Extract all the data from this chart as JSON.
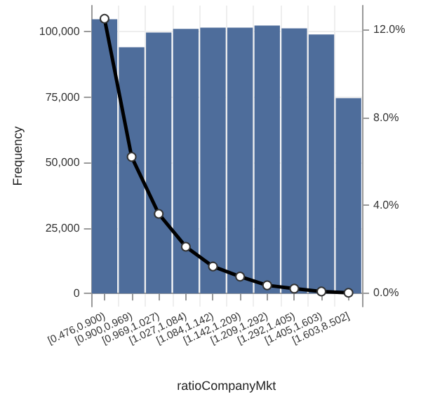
{
  "chart_data": {
    "type": "bar",
    "xlabel": "ratioCompanyMkt",
    "ylabel": "Frequency",
    "categories": [
      "[0.476,0.900)",
      "[0.900,0.969)",
      "[0.969,1.027)",
      "[1.027,1.084)",
      "[1.084,1.142)",
      "[1.142,1.209)",
      "[1.209,1.292)",
      "[1.292,1.405)",
      "[1.405,1.603)",
      "[1.603,8.502]"
    ],
    "series": [
      {
        "color": "#4e6d9b",
        "values": [
          104800,
          94100,
          99700,
          101100,
          101600,
          101600,
          102400,
          101300,
          99000,
          74600
        ]
      },
      {
        "type": "line",
        "axis": "y2",
        "color": "#000000",
        "values": [
          12.5,
          6.2,
          3.6,
          2.1,
          1.2,
          0.74,
          0.34,
          0.19,
          0.06,
          0.0
        ]
      }
    ],
    "ylim": [
      -5000,
      110000
    ],
    "yticks": [
      {
        "value": 0,
        "label": "0"
      },
      {
        "value": 25000,
        "label": "25,000"
      },
      {
        "value": 50000,
        "label": "50,000"
      },
      {
        "value": 75000,
        "label": "75,000"
      },
      {
        "value": 100000,
        "label": "100,000"
      }
    ],
    "y2lim": [
      -0.63,
      13.1
    ],
    "y2ticks": [
      {
        "value": 0,
        "label": "0.0%"
      },
      {
        "value": 4,
        "label": "4.0%"
      },
      {
        "value": 8,
        "label": "8.0%"
      },
      {
        "value": 12,
        "label": "12.0%"
      }
    ],
    "grid": true,
    "marker": "circle",
    "line_style": "solid"
  }
}
